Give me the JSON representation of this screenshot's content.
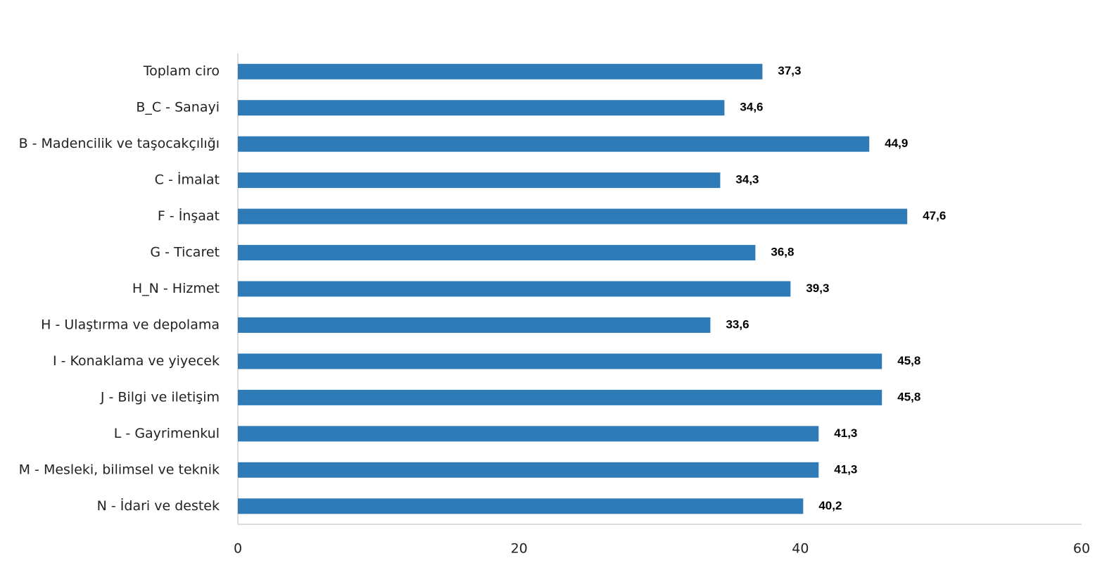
{
  "chart_data": {
    "type": "bar",
    "orientation": "horizontal",
    "categories": [
      "Toplam ciro",
      "B_C - Sanayi",
      "B - Madencilik ve taşocakçılığı",
      "C - İmalat",
      "F - İnşaat",
      "G - Ticaret",
      "H_N - Hizmet",
      "H - Ulaştırma ve depolama",
      "I - Konaklama ve yiyecek",
      "J - Bilgi ve iletişim",
      "L - Gayrimenkul",
      "M - Mesleki, bilimsel ve teknik",
      "N - İdari ve destek"
    ],
    "values": [
      37.3,
      34.6,
      44.9,
      34.3,
      47.6,
      36.8,
      39.3,
      33.6,
      45.8,
      45.8,
      41.3,
      41.3,
      40.2
    ],
    "value_labels": [
      "37,3",
      "34,6",
      "44,9",
      "34,3",
      "47,6",
      "36,8",
      "39,3",
      "33,6",
      "45,8",
      "45,8",
      "41,3",
      "41,3",
      "40,2"
    ],
    "color": "#2e7bb8",
    "xlim": [
      0,
      60
    ],
    "xticks": [
      0,
      20,
      40,
      60
    ],
    "grid": false
  }
}
